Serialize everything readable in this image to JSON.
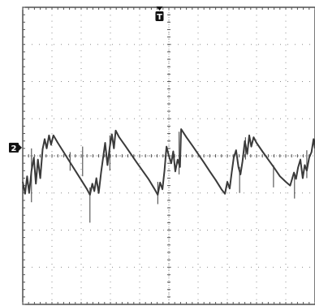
{
  "chart_data": {
    "type": "line",
    "title": "",
    "xlabel": "",
    "ylabel": "",
    "grid": true,
    "divisions": {
      "x": 10,
      "y": 8
    },
    "xlim": [
      0,
      10
    ],
    "ylim": [
      -4,
      4
    ],
    "trigger_marker": {
      "label": "T",
      "x": 4.68
    },
    "channel_marker": {
      "label": "2",
      "y": 0.22
    },
    "series": [
      {
        "name": "",
        "color": "#3a3a3a",
        "x": [
          0.0,
          0.08,
          0.15,
          0.22,
          0.3,
          0.38,
          0.45,
          0.52,
          0.6,
          0.68,
          0.75,
          0.82,
          0.9,
          0.97,
          1.05,
          1.2,
          1.4,
          1.6,
          1.8,
          2.0,
          2.2,
          2.3,
          2.38,
          2.45,
          2.52,
          2.6,
          2.68,
          2.75,
          2.82,
          2.9,
          2.98,
          3.05,
          3.12,
          3.18,
          3.3,
          3.5,
          3.7,
          3.9,
          4.1,
          4.3,
          4.5,
          4.62,
          4.7,
          4.78,
          4.85,
          4.92,
          5.0,
          5.08,
          5.15,
          5.22,
          5.3,
          5.38,
          5.42,
          5.6,
          5.8,
          6.0,
          6.2,
          6.4,
          6.6,
          6.8,
          6.92,
          7.0,
          7.08,
          7.15,
          7.22,
          7.3,
          7.38,
          7.45,
          7.52,
          7.6,
          7.68,
          7.75,
          7.82,
          7.9,
          8.0,
          8.2,
          8.4,
          8.6,
          8.8,
          9.0,
          9.15,
          9.28,
          9.35,
          9.42,
          9.5,
          9.58,
          9.65,
          9.72,
          9.8,
          9.88,
          9.95,
          10.0
        ],
        "y": [
          -0.7,
          -1.02,
          -0.55,
          -1.0,
          -0.4,
          -0.05,
          -0.75,
          -0.1,
          -0.6,
          0.18,
          0.45,
          0.2,
          0.55,
          0.3,
          0.55,
          0.35,
          0.1,
          -0.15,
          -0.4,
          -0.65,
          -0.9,
          -1.05,
          -0.75,
          -0.95,
          -0.6,
          -1.0,
          -0.45,
          -0.05,
          0.35,
          -0.25,
          0.25,
          0.58,
          0.2,
          0.68,
          0.5,
          0.28,
          0.05,
          -0.18,
          -0.4,
          -0.62,
          -0.88,
          -1.05,
          -0.72,
          -0.9,
          -0.4,
          0.25,
          0.0,
          -0.2,
          0.12,
          -0.42,
          -0.1,
          -0.3,
          0.72,
          0.5,
          0.28,
          0.05,
          -0.18,
          -0.42,
          -0.65,
          -0.9,
          -1.02,
          -0.7,
          -0.88,
          -0.45,
          -0.05,
          0.15,
          -0.3,
          -0.5,
          -0.15,
          0.4,
          0.05,
          0.55,
          0.25,
          0.5,
          0.35,
          0.12,
          -0.1,
          -0.32,
          -0.55,
          -0.7,
          -0.8,
          -0.45,
          -0.62,
          -0.32,
          -0.1,
          -0.6,
          -0.25,
          -0.4,
          -0.05,
          0.1,
          0.45,
          0.2
        ]
      }
    ],
    "spikes": [
      {
        "x": 0.3,
        "y1": 0.2,
        "y2": -1.25
      },
      {
        "x": 1.62,
        "y1": 0.1,
        "y2": -0.4
      },
      {
        "x": 2.05,
        "y1": 0.25,
        "y2": -0.55
      },
      {
        "x": 2.3,
        "y1": -0.85,
        "y2": -1.8
      },
      {
        "x": 2.98,
        "y1": 0.55,
        "y2": -0.4
      },
      {
        "x": 4.62,
        "y1": -0.7,
        "y2": -1.3
      },
      {
        "x": 5.35,
        "y1": 0.65,
        "y2": -0.5
      },
      {
        "x": 7.42,
        "y1": -0.3,
        "y2": -1.0
      },
      {
        "x": 7.62,
        "y1": 0.5,
        "y2": -0.1
      },
      {
        "x": 8.58,
        "y1": -0.25,
        "y2": -0.85
      },
      {
        "x": 9.3,
        "y1": -0.5,
        "y2": -1.15
      },
      {
        "x": 9.72,
        "y1": 0.15,
        "y2": -0.6
      }
    ]
  }
}
